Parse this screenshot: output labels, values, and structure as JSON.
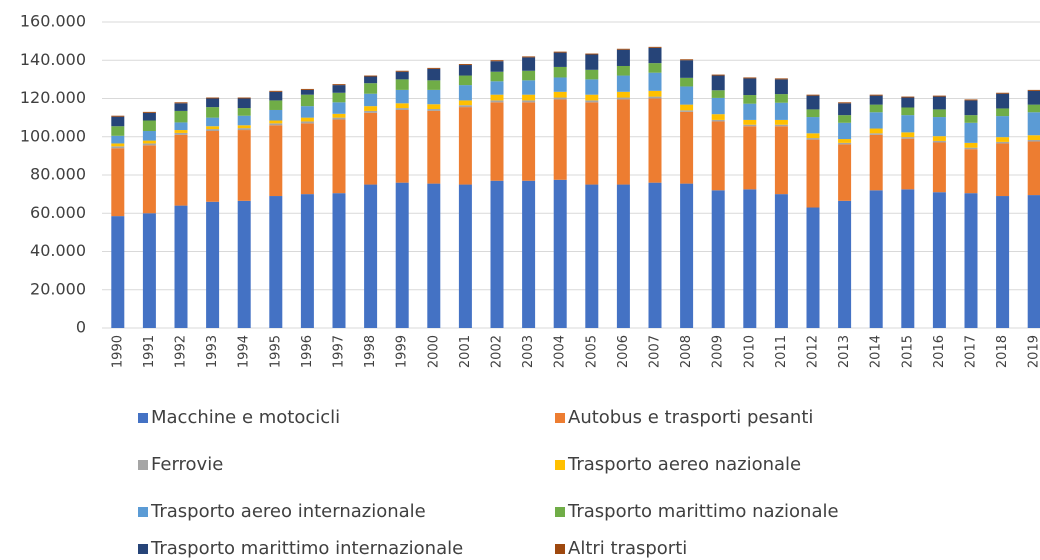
{
  "chart_data": {
    "type": "stacked_bar",
    "categories": [
      "1990",
      "1991",
      "1992",
      "1993",
      "1994",
      "1995",
      "1996",
      "1997",
      "1998",
      "1999",
      "2000",
      "2001",
      "2002",
      "2003",
      "2004",
      "2005",
      "2006",
      "2007",
      "2008",
      "2009",
      "2010",
      "2011",
      "2012",
      "2013",
      "2014",
      "2015",
      "2016",
      "2017",
      "2018",
      "2019"
    ],
    "series": [
      {
        "name": "Macchine e motocicli",
        "color": "#4472c4",
        "values": [
          58500,
          60000,
          64000,
          66000,
          66500,
          69000,
          70000,
          70500,
          75000,
          76000,
          75500,
          75000,
          77000,
          77000,
          77500,
          75000,
          75000,
          76000,
          75500,
          72000,
          72500,
          70000,
          63000,
          66500,
          72000,
          72500,
          71000,
          70500,
          69000,
          69500
        ]
      },
      {
        "name": "Autobus e trasporti pesanti",
        "color": "#ed7d31",
        "values": [
          35500,
          35500,
          37000,
          37000,
          37000,
          37000,
          37000,
          38500,
          37500,
          38000,
          38000,
          40500,
          41000,
          41000,
          42000,
          43000,
          44500,
          44000,
          37500,
          36000,
          33000,
          35500,
          35500,
          29500,
          29000,
          26500,
          26000,
          23000,
          27500,
          28000
        ]
      },
      {
        "name": "Ferrovie",
        "color": "#a5a5a5",
        "values": [
          1000,
          1000,
          1000,
          1000,
          1000,
          1000,
          1000,
          1000,
          1000,
          1000,
          1000,
          1000,
          1000,
          1000,
          1000,
          1000,
          1000,
          1000,
          800,
          800,
          800,
          800,
          800,
          800,
          800,
          800,
          800,
          800,
          800,
          800
        ]
      },
      {
        "name": "Trasporto aereo nazionale",
        "color": "#ffc000",
        "values": [
          1500,
          1500,
          1500,
          1500,
          1500,
          1500,
          2000,
          2000,
          2500,
          2500,
          2500,
          2500,
          3000,
          3000,
          3000,
          3000,
          3000,
          3000,
          3000,
          3000,
          2500,
          2500,
          2500,
          2000,
          2500,
          2500,
          2500,
          2500,
          2500,
          2500
        ]
      },
      {
        "name": "Trasporto aereo internazionale",
        "color": "#5b9bd5",
        "values": [
          4000,
          5000,
          4000,
          4500,
          5000,
          5500,
          6000,
          6000,
          6500,
          7000,
          7500,
          8000,
          7000,
          7500,
          7500,
          8000,
          8500,
          9500,
          9500,
          8500,
          8500,
          9000,
          8500,
          8500,
          8500,
          9000,
          10000,
          10500,
          11000,
          12000
        ]
      },
      {
        "name": "Trasporto marittimo nazionale",
        "color": "#70ad47",
        "values": [
          5000,
          5500,
          6000,
          5500,
          4000,
          5000,
          6000,
          5000,
          5500,
          5500,
          5000,
          5000,
          5000,
          5000,
          5500,
          5000,
          5000,
          5000,
          4500,
          4000,
          4500,
          4500,
          4000,
          4000,
          4000,
          4000,
          4000,
          4000,
          4000,
          4000
        ]
      },
      {
        "name": "Trasporto marittimo internazionale",
        "color": "#264478",
        "values": [
          5000,
          4000,
          4000,
          4500,
          5000,
          4500,
          2500,
          4000,
          3500,
          4000,
          6000,
          5500,
          5500,
          7000,
          7500,
          8000,
          8500,
          8000,
          9200,
          7700,
          8700,
          7700,
          7200,
          6200,
          4700,
          5200,
          6700,
          7700,
          7700,
          7200
        ]
      },
      {
        "name": "Altri trasporti",
        "color": "#9e480e",
        "values": [
          500,
          500,
          500,
          500,
          500,
          500,
          500,
          500,
          500,
          500,
          500,
          500,
          500,
          500,
          500,
          500,
          500,
          500,
          500,
          500,
          500,
          500,
          500,
          500,
          500,
          500,
          500,
          500,
          500,
          500
        ]
      }
    ],
    "ylim": [
      0,
      160000
    ],
    "yticks": [
      0,
      {
        "value": 20000,
        "label": "20.000"
      },
      {
        "value": 40000,
        "label": "40.000"
      },
      {
        "value": 60000,
        "label": "60.000"
      },
      {
        "value": 80000,
        "label": "80.000"
      },
      {
        "value": 100000,
        "label": "100.000"
      },
      {
        "value": 120000,
        "label": "120.000"
      },
      {
        "value": 140000,
        "label": "140.000"
      },
      {
        "value": 160000,
        "label": "160.000"
      }
    ],
    "grid": true
  }
}
